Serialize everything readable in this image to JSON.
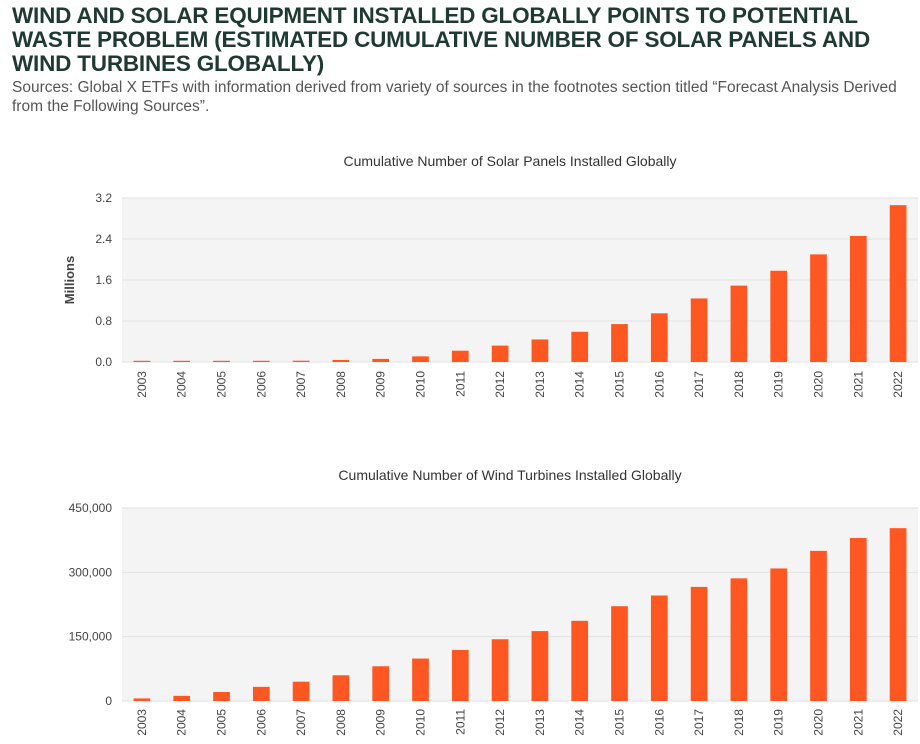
{
  "header": {
    "title": "WIND AND SOLAR EQUIPMENT INSTALLED GLOBALLY POINTS TO POTENTIAL WASTE PROBLEM (ESTIMATED CUMULATIVE NUMBER OF SOLAR PANELS AND WIND TURBINES GLOBALLY)",
    "subtitle": "Sources: Global X ETFs with information derived from variety of sources in the footnotes section titled “Forecast Analysis Derived from the Following Sources”."
  },
  "colors": {
    "bar": "#ff5722",
    "plot_bg": "#f4f4f4",
    "grid": "#e2e2e2",
    "title": "#1f3a33"
  },
  "chart_data": [
    {
      "type": "bar",
      "title": "Cumulative Number of Solar Panels Installed Globally",
      "xlabel": "",
      "ylabel": "Millions",
      "ylim": [
        0,
        3.2
      ],
      "yticks": [
        0.0,
        0.8,
        1.6,
        2.4,
        3.2
      ],
      "ytick_labels": [
        "0.0",
        "0.8",
        "1.6",
        "2.4",
        "3.2"
      ],
      "categories": [
        "2003",
        "2004",
        "2005",
        "2006",
        "2007",
        "2008",
        "2009",
        "2010",
        "2011",
        "2012",
        "2013",
        "2014",
        "2015",
        "2016",
        "2017",
        "2018",
        "2019",
        "2020",
        "2021",
        "2022"
      ],
      "values": [
        0.005,
        0.008,
        0.01,
        0.015,
        0.025,
        0.04,
        0.06,
        0.11,
        0.22,
        0.32,
        0.44,
        0.59,
        0.74,
        0.95,
        1.24,
        1.49,
        1.78,
        2.1,
        2.46,
        3.06
      ]
    },
    {
      "type": "bar",
      "title": "Cumulative Number of Wind Turbines Installed Globally",
      "xlabel": "",
      "ylabel": "",
      "ylim": [
        0,
        450000
      ],
      "yticks": [
        0,
        150000,
        300000,
        450000
      ],
      "ytick_labels": [
        "0",
        "150,000",
        "300,000",
        "450,000"
      ],
      "categories": [
        "2003",
        "2004",
        "2005",
        "2006",
        "2007",
        "2008",
        "2009",
        "2010",
        "2011",
        "2012",
        "2013",
        "2014",
        "2015",
        "2016",
        "2017",
        "2018",
        "2019",
        "2020",
        "2021",
        "2022"
      ],
      "values": [
        6000,
        12000,
        21000,
        33000,
        45000,
        60000,
        81000,
        99000,
        119000,
        144000,
        163000,
        187000,
        221000,
        246000,
        266000,
        286000,
        309000,
        350000,
        380000,
        403000
      ]
    }
  ]
}
